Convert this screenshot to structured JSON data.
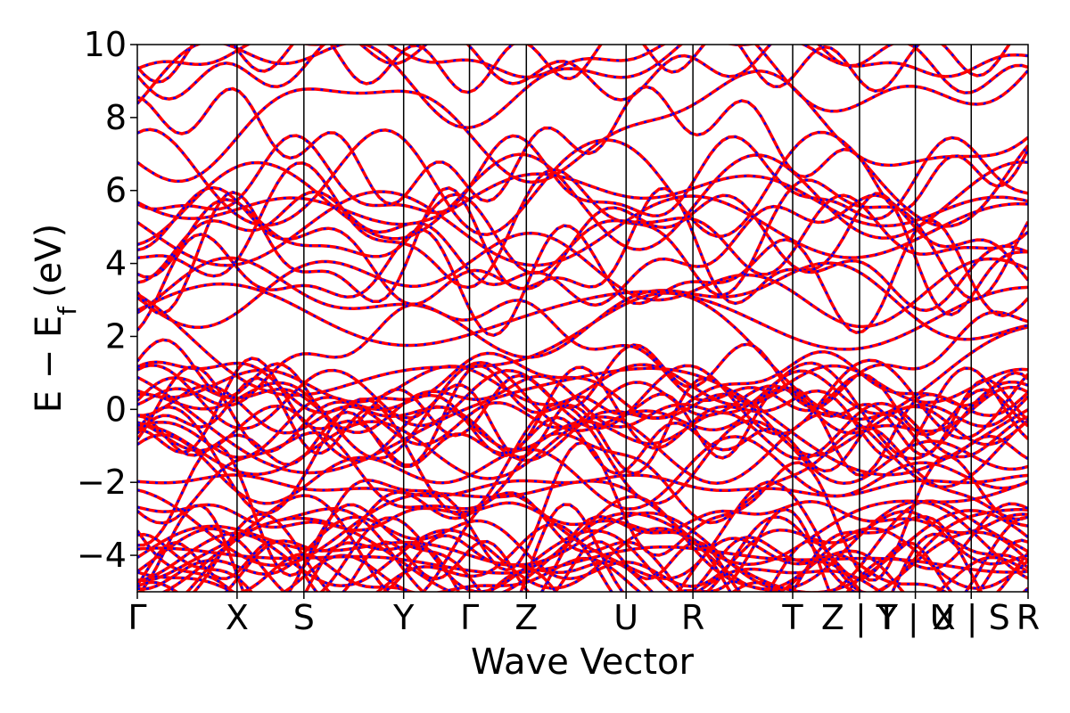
{
  "chart_data": {
    "type": "line",
    "xlabel": "Wave Vector",
    "ylabel": "E − E",
    "ylabel_subscript": "f",
    "ylabel_unit": "(eV)",
    "ylim": [
      -5,
      10
    ],
    "yticks": [
      -4,
      -2,
      0,
      2,
      4,
      6,
      8,
      10
    ],
    "ytick_labels": [
      "−4",
      "−2",
      "0",
      "2",
      "4",
      "6",
      "8",
      "10"
    ],
    "kpath": [
      {
        "label": "Γ",
        "x": 0.0
      },
      {
        "label": "X",
        "x": 1.0
      },
      {
        "label": "S",
        "x": 1.67
      },
      {
        "label": "Y",
        "x": 2.67
      },
      {
        "label": "Γ",
        "x": 3.33
      },
      {
        "label": "Z",
        "x": 3.9
      },
      {
        "label": "U",
        "x": 4.9
      },
      {
        "label": "R",
        "x": 5.57
      },
      {
        "label": "T",
        "x": 6.57
      },
      {
        "label": "Z | Y",
        "x": 7.24
      },
      {
        "label": "T | U",
        "x": 7.8
      },
      {
        "label": "X | S",
        "x": 8.36
      },
      {
        "label": "R",
        "x": 8.93
      }
    ],
    "grid": false,
    "series": [
      {
        "style": "solid",
        "color": "#ff0000"
      },
      {
        "style": "dotted",
        "color": "#0000ff"
      }
    ]
  }
}
